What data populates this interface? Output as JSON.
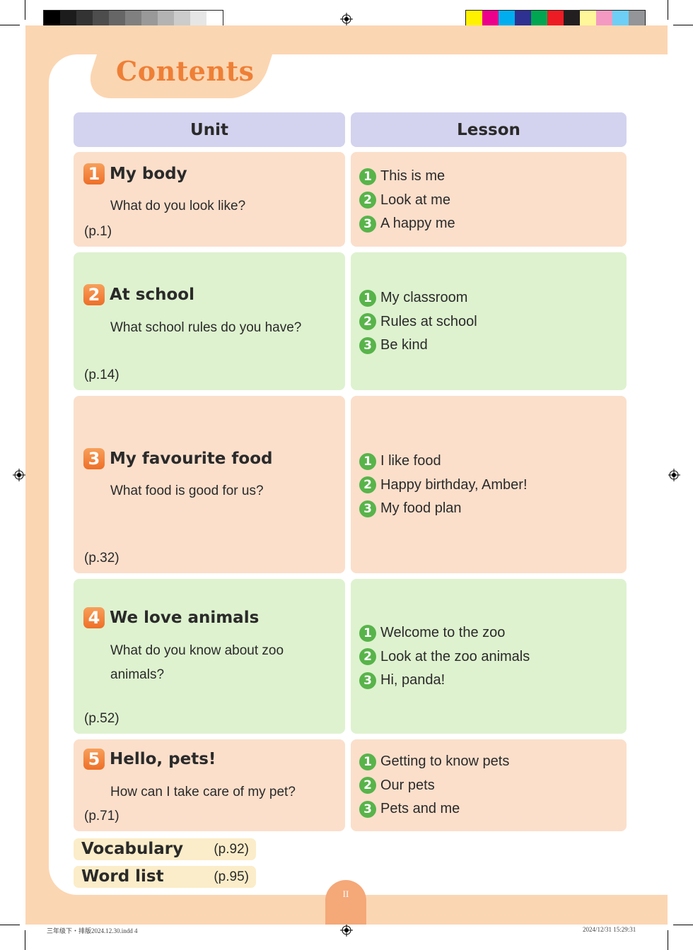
{
  "title": "Contents",
  "headers": {
    "unit": "Unit",
    "lesson": "Lesson"
  },
  "units": [
    {
      "number": "1",
      "title": "My body",
      "question": "What do you look like?",
      "page": "(p.1)",
      "row_color": "#fbdfcb",
      "lessons": [
        {
          "number": "1",
          "title": "This is me"
        },
        {
          "number": "2",
          "title": "Look at me"
        },
        {
          "number": "3",
          "title": "A happy me"
        }
      ]
    },
    {
      "number": "2",
      "title": "At school",
      "question": "What school rules do you have?",
      "page": "(p.14)",
      "row_color": "#def2cf",
      "lessons": [
        {
          "number": "1",
          "title": "My classroom"
        },
        {
          "number": "2",
          "title": "Rules at school"
        },
        {
          "number": "3",
          "title": "Be kind"
        }
      ]
    },
    {
      "number": "3",
      "title": "My favourite food",
      "question": "What food is good for us?",
      "page": "(p.32)",
      "row_color": "#fbdfcb",
      "lessons": [
        {
          "number": "1",
          "title": "I like food"
        },
        {
          "number": "2",
          "title": "Happy birthday, Amber!"
        },
        {
          "number": "3",
          "title": "My food plan"
        }
      ]
    },
    {
      "number": "4",
      "title": "We love animals",
      "question": "What do you know about zoo animals?",
      "page": "(p.52)",
      "row_color": "#def2cf",
      "lessons": [
        {
          "number": "1",
          "title": "Welcome to the zoo"
        },
        {
          "number": "2",
          "title": "Look at the zoo animals"
        },
        {
          "number": "3",
          "title": "Hi, panda!"
        }
      ]
    },
    {
      "number": "5",
      "title": "Hello, pets!",
      "question": "How can I take care of my pet?",
      "page": "(p.71)",
      "row_color": "#fbdfcb",
      "lessons": [
        {
          "number": "1",
          "title": "Getting to know pets"
        },
        {
          "number": "2",
          "title": "Our pets"
        },
        {
          "number": "3",
          "title": "Pets and me"
        }
      ]
    }
  ],
  "extras": [
    {
      "label": "Vocabulary",
      "page": "(p.92)"
    },
    {
      "label": "Word list",
      "page": "(p.95)"
    }
  ],
  "page_number": "II",
  "slug": {
    "left": "三年级下・排版2024.12.30.indd   4",
    "right": "2024/12/31   15:29:31"
  },
  "colors": {
    "title": "#ee7f36",
    "page_bg": "#fbd6b2",
    "header": "#d3d3ef",
    "peach_row": "#fbdfcb",
    "green_row": "#def2cf",
    "unit_badge": "#ee6f28",
    "lesson_badge": "#58b44a",
    "extra_bg": "#fbedc9"
  },
  "print_marks": {
    "gray_swatches": [
      "#000000",
      "#1c1c1c",
      "#333333",
      "#4d4d4d",
      "#666666",
      "#808080",
      "#999999",
      "#b3b3b3",
      "#cccccc",
      "#e6e6e6",
      "#ffffff"
    ],
    "color_swatches": [
      "#fff200",
      "#ec008c",
      "#00aeef",
      "#2e3192",
      "#00a651",
      "#ed1c24",
      "#231f20",
      "#fff799",
      "#f49ac2",
      "#6dcff6",
      "#939598"
    ]
  }
}
